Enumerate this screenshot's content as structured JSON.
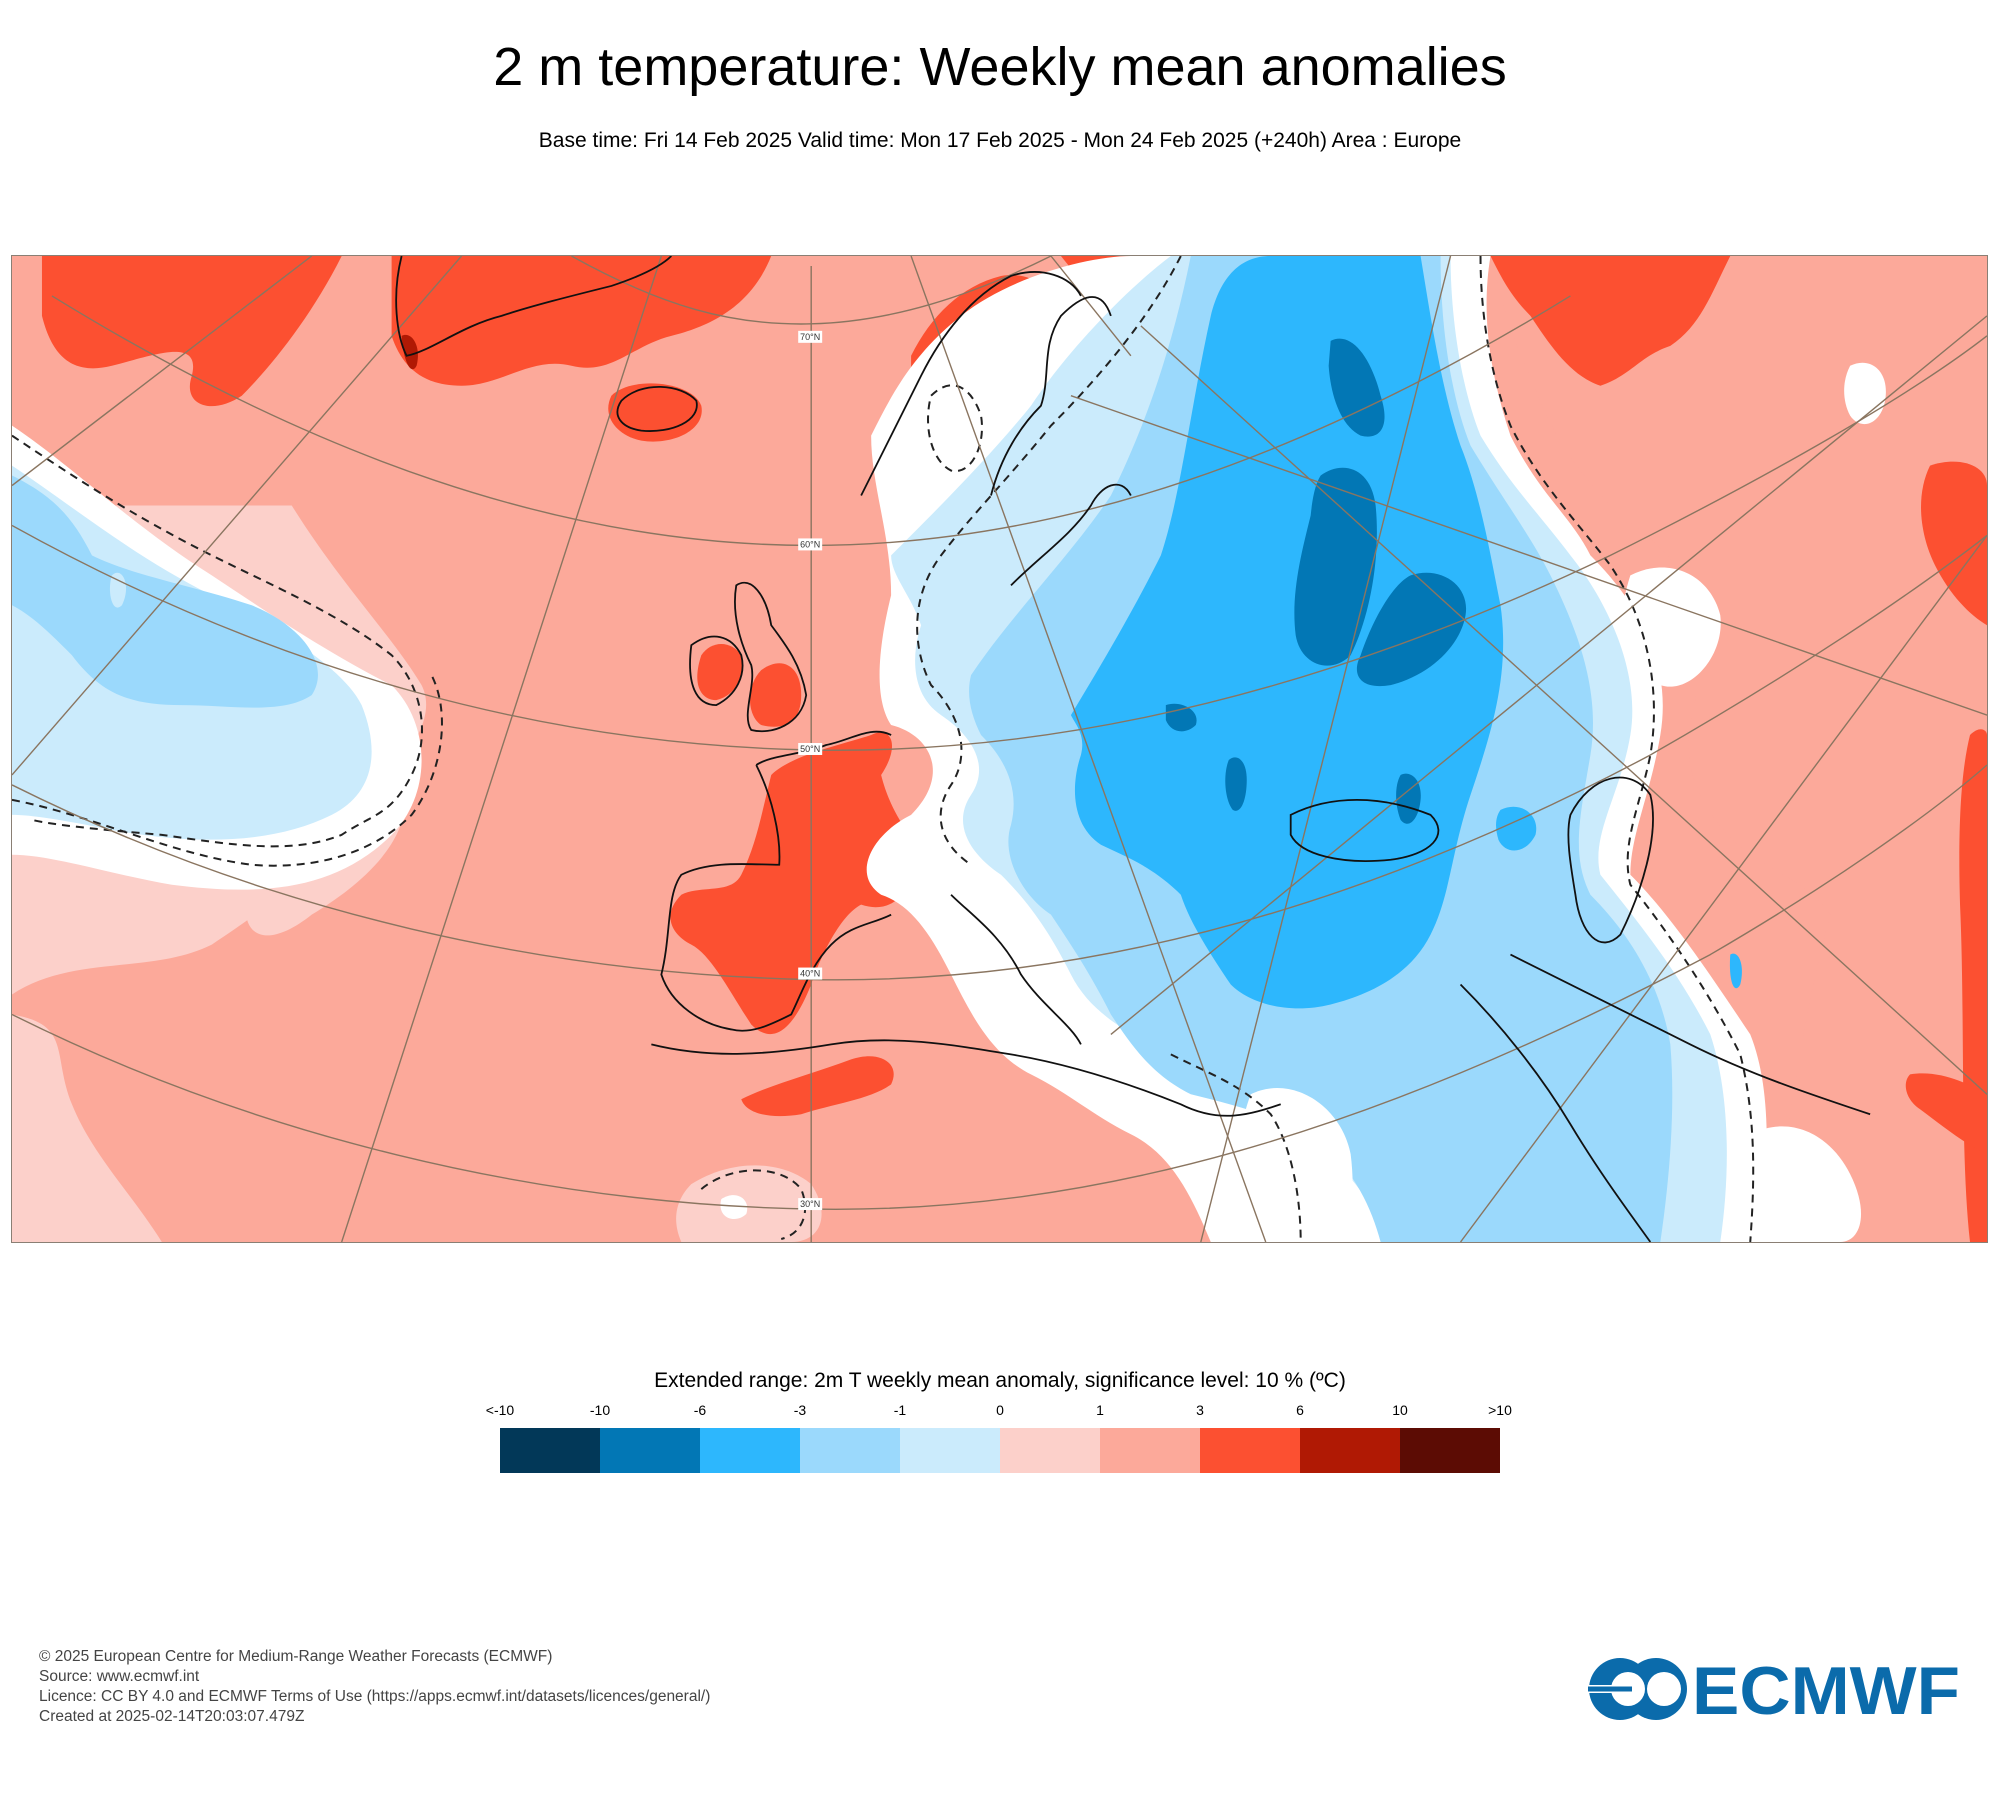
{
  "title": "2 m temperature: Weekly mean anomalies",
  "subtitle": "Base time: Fri 14 Feb 2025 Valid time: Mon 17 Feb 2025 - Mon 24 Feb 2025 (+240h) Area : Europe",
  "map": {
    "area": "Europe",
    "latitude_labels": [
      "70°N",
      "60°N",
      "50°N",
      "40°N",
      "30°N"
    ],
    "colors": {
      "lt_minus10": "#023858",
      "minus10_minus6": "#0277b5",
      "minus6_minus3": "#2db7fd",
      "minus3_minus1": "#9bd9fc",
      "minus1_0": "#cbebfc",
      "zero_band": "#ffffff",
      "0_1": "#fcd0ca",
      "1_3": "#fca99a",
      "3_6": "#fc5031",
      "6_10": "#b01904",
      "gt_10": "#5c0c04",
      "coastline": "#111111",
      "graticule": "#8a7560"
    }
  },
  "legend": {
    "title": "Extended range: 2m T weekly mean anomaly, significance level: 10 % (ºC)",
    "ticks": [
      "<-10",
      "-10",
      "-6",
      "-3",
      "-1",
      "0",
      "1",
      "3",
      "6",
      "10",
      ">10"
    ],
    "bins": [
      {
        "range": "<-10 to -10",
        "color": "#023858"
      },
      {
        "range": "-10 to -6",
        "color": "#0277b5"
      },
      {
        "range": "-6 to -3",
        "color": "#2db7fd"
      },
      {
        "range": "-3 to -1",
        "color": "#9bd9fc"
      },
      {
        "range": "-1 to 0",
        "color": "#cbebfc"
      },
      {
        "range": "0 to 1",
        "color": "#fcd0ca"
      },
      {
        "range": "1 to 3",
        "color": "#fca99a"
      },
      {
        "range": "3 to 6",
        "color": "#fc5031"
      },
      {
        "range": "6 to 10",
        "color": "#b01904"
      },
      {
        "range": "10 to >10",
        "color": "#5c0c04"
      }
    ]
  },
  "footer": {
    "copyright": "© 2025 European Centre for Medium-Range Weather Forecasts (ECMWF)",
    "source": "Source: www.ecmwf.int",
    "licence": "Licence: CC BY 4.0 and ECMWF Terms of Use (https://apps.ecmwf.int/datasets/licences/general/)",
    "created": "Created at 2025-02-14T20:03:07.479Z"
  },
  "logo": {
    "text": "ECMWF",
    "color": "#0b6bab"
  }
}
